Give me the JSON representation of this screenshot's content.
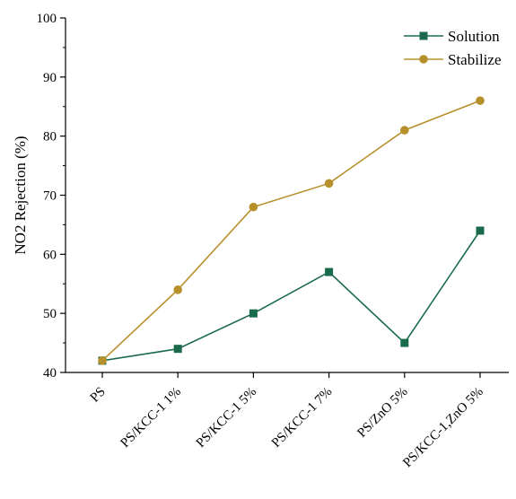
{
  "chart_data": {
    "type": "line",
    "title": "",
    "xlabel": "",
    "ylabel": "NO2 Rejection (%)",
    "categories": [
      "PS",
      "PS/KCC-1 1%",
      "PS/KCC-1 5%",
      "PS/KCC-1 7%",
      "PS/ZnO 5%",
      "PS/KCC-1,ZnO 5%"
    ],
    "ylim": [
      40,
      100
    ],
    "yticks": [
      40,
      50,
      60,
      70,
      80,
      90,
      100
    ],
    "grid": false,
    "legend_position": "top-right",
    "series": [
      {
        "name": "Solution",
        "values": [
          42,
          44,
          50,
          57,
          45,
          64
        ],
        "color": "#1a6b4c",
        "marker": "square"
      },
      {
        "name": "Stabilize",
        "values": [
          42,
          54,
          68,
          72,
          81,
          86
        ],
        "color": "#b8902b",
        "marker": "circle"
      }
    ]
  }
}
